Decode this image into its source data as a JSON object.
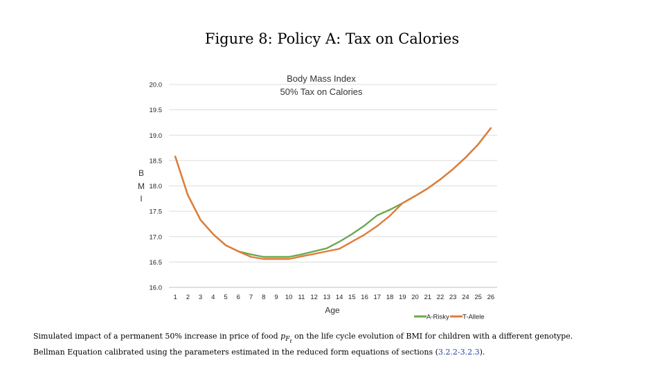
{
  "figure": {
    "title": "Figure 8: Policy A: Tax on Calories"
  },
  "caption": {
    "line1_a": "Simulated impact of a permanent 50% increase in price of food ",
    "line1_math": "p",
    "line1_sub": "F",
    "line1_subsub": "t",
    "line1_b": " on the life cycle evolution of BMI for children with a different genotype.",
    "line2_a": "Bellman Equation calibrated using the parameters estimated in the reduced form equations of sections (",
    "line2_ref": "3.2.2-3.2.3",
    "line2_b": ")."
  },
  "chart_data": {
    "type": "line",
    "title": [
      "Body Mass Index",
      "50% Tax on Calories"
    ],
    "xlabel": "Age",
    "ylabel": [
      "B",
      "M",
      "I"
    ],
    "x": [
      1,
      2,
      3,
      4,
      5,
      6,
      7,
      8,
      9,
      10,
      11,
      12,
      13,
      14,
      15,
      16,
      17,
      18,
      19,
      20,
      21,
      22,
      23,
      24,
      25,
      26
    ],
    "ylim": [
      16.0,
      20.0
    ],
    "yticks": [
      "16.0",
      "16.5",
      "17.0",
      "17.5",
      "18.0",
      "18.5",
      "19.0",
      "19.5",
      "20.0"
    ],
    "grid": true,
    "legend_position": "bottom-right",
    "series": [
      {
        "name": "A-Risky",
        "color": "#6aa84f",
        "values": [
          18.58,
          17.82,
          17.33,
          17.05,
          16.83,
          16.71,
          16.65,
          16.6,
          16.6,
          16.6,
          16.65,
          16.71,
          16.77,
          16.9,
          17.05,
          17.22,
          17.42,
          17.53,
          17.66,
          17.8,
          17.95,
          18.13,
          18.33,
          18.56,
          18.82,
          19.14
        ]
      },
      {
        "name": "T-Allele",
        "color": "#e07b39",
        "values": [
          18.58,
          17.82,
          17.33,
          17.05,
          16.83,
          16.71,
          16.6,
          16.56,
          16.56,
          16.56,
          16.61,
          16.66,
          16.71,
          16.76,
          16.9,
          17.04,
          17.21,
          17.41,
          17.66,
          17.8,
          17.95,
          18.13,
          18.33,
          18.56,
          18.82,
          19.14
        ]
      }
    ]
  }
}
